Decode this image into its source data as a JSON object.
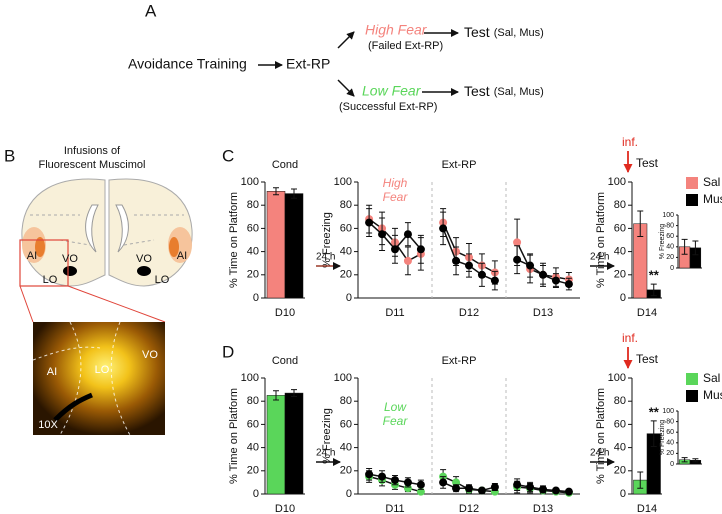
{
  "panel_labels": [
    "A",
    "B",
    "C",
    "D"
  ],
  "diagram": {
    "training": "Avoidance Training",
    "ext_rp": "Ext-RP",
    "high": "High Fear",
    "high_sub": "(Failed Ext-RP)",
    "low": "Low Fear",
    "low_sub": "(Successful Ext-RP)",
    "tests": [
      {
        "test": "Test",
        "groups": "(Sal, Mus)"
      },
      {
        "test": "Test",
        "groups": "(Sal, Mus)"
      }
    ]
  },
  "brain": {
    "title": [
      "Infusions of",
      "Fluorescent Muscimol"
    ],
    "labels": [
      "AI",
      "VO",
      "LO",
      "VO",
      "AI",
      "LO"
    ],
    "photo_labels": [
      "AI",
      "LO",
      "VO",
      "10X"
    ]
  },
  "rows": [
    {
      "intervals": [
        "24 h",
        "24 h"
      ],
      "infusion": "inf.",
      "test": "Test"
    },
    {
      "intervals": [
        "24 h",
        "24 h"
      ],
      "infusion": "inf.",
      "test": "Test"
    }
  ],
  "chart_data": [
    {
      "type": "bar",
      "title": "Cond",
      "ylabel": "% Time on Platform",
      "categories": [
        "D10"
      ],
      "series": [
        {
          "color": "#f4837d",
          "values": [
            92
          ],
          "errors": [
            3
          ]
        },
        {
          "color": "#000000",
          "values": [
            90
          ],
          "errors": [
            4
          ]
        }
      ],
      "ylim": [
        0,
        100
      ],
      "yticks": [
        0,
        20,
        40,
        60,
        80,
        100
      ]
    },
    {
      "type": "line",
      "title": "Ext-RP",
      "ylabel": "% Freezing",
      "annotation": [
        "High",
        "Fear"
      ],
      "annotation_color": "#f4837d",
      "categories": [
        "D11",
        "D12",
        "D13"
      ],
      "series": [
        {
          "color": "#f4837d",
          "values": [
            [
              68,
              60,
              48,
              32,
              38
            ],
            [
              65,
              40,
              35,
              28,
              22
            ],
            [
              48,
              25,
              20,
              18,
              16
            ]
          ],
          "errors": [
            [
              12,
              14,
              12,
              12,
              14
            ],
            [
              12,
              12,
              12,
              10,
              10
            ],
            [
              20,
              12,
              10,
              8,
              6
            ]
          ]
        },
        {
          "color": "#000000",
          "values": [
            [
              65,
              55,
              42,
              55,
              42
            ],
            [
              60,
              32,
              28,
              20,
              15
            ],
            [
              33,
              28,
              20,
              15,
              12
            ]
          ],
          "errors": [
            [
              12,
              14,
              12,
              10,
              12
            ],
            [
              14,
              12,
              10,
              10,
              8
            ],
            [
              12,
              10,
              8,
              6,
              5
            ]
          ]
        }
      ],
      "ylim": [
        0,
        100
      ],
      "yticks": [
        0,
        20,
        40,
        60,
        80,
        100
      ]
    },
    {
      "type": "bar",
      "ylabel": "% Time on Platform",
      "categories": [
        "D14"
      ],
      "annotation": "**",
      "series": [
        {
          "name": "Sal",
          "color": "#f4837d",
          "values": [
            64
          ],
          "errors": [
            11
          ]
        },
        {
          "name": "Mus",
          "color": "#000000",
          "values": [
            7
          ],
          "errors": [
            5
          ]
        }
      ],
      "ylim": [
        0,
        100
      ],
      "yticks": [
        0,
        20,
        40,
        60,
        80,
        100
      ]
    },
    {
      "type": "bar",
      "ylabel": "% Freezing",
      "series": [
        {
          "color": "#f4837d",
          "values": [
            40
          ],
          "errors": [
            14
          ]
        },
        {
          "color": "#000000",
          "values": [
            38
          ],
          "errors": [
            13
          ]
        }
      ],
      "ylim": [
        0,
        100
      ],
      "yticks": [
        0,
        20,
        40,
        60,
        80,
        100
      ]
    },
    {
      "type": "bar",
      "title": "Cond",
      "ylabel": "% Time on Platform",
      "categories": [
        "D10"
      ],
      "series": [
        {
          "color": "#5ad65a",
          "values": [
            85
          ],
          "errors": [
            4
          ]
        },
        {
          "color": "#000000",
          "values": [
            87
          ],
          "errors": [
            3
          ]
        }
      ],
      "ylim": [
        0,
        100
      ],
      "yticks": [
        0,
        20,
        40,
        60,
        80,
        100
      ]
    },
    {
      "type": "line",
      "title": "Ext-RP",
      "ylabel": "% Freezing",
      "annotation": [
        "Low",
        "Fear"
      ],
      "annotation_color": "#5ad65a",
      "categories": [
        "D11",
        "D12",
        "D13"
      ],
      "series": [
        {
          "color": "#5ad65a",
          "values": [
            [
              15,
              12,
              8,
              5,
              2
            ],
            [
              15,
              10,
              4,
              3,
              2
            ],
            [
              6,
              5,
              3,
              2,
              1
            ]
          ],
          "errors": [
            [
              5,
              5,
              4,
              3,
              2
            ],
            [
              6,
              5,
              3,
              2,
              2
            ],
            [
              5,
              4,
              3,
              2,
              1
            ]
          ]
        },
        {
          "color": "#000000",
          "values": [
            [
              17,
              15,
              12,
              10,
              8
            ],
            [
              10,
              5,
              5,
              3,
              6
            ],
            [
              8,
              6,
              4,
              3,
              2
            ]
          ],
          "errors": [
            [
              5,
              5,
              4,
              4,
              4
            ],
            [
              5,
              3,
              3,
              2,
              3
            ],
            [
              5,
              4,
              3,
              2,
              2
            ]
          ]
        }
      ],
      "ylim": [
        0,
        100
      ],
      "yticks": [
        0,
        20,
        40,
        60,
        80,
        100
      ]
    },
    {
      "type": "bar",
      "ylabel": "% Time on Platform",
      "categories": [
        "D14"
      ],
      "annotation": "**",
      "series": [
        {
          "name": "Sal",
          "color": "#5ad65a",
          "values": [
            12
          ],
          "errors": [
            7
          ]
        },
        {
          "name": "Mus",
          "color": "#000000",
          "values": [
            52
          ],
          "errors": [
            11
          ]
        }
      ],
      "ylim": [
        0,
        100
      ],
      "yticks": [
        0,
        20,
        40,
        60,
        80,
        100
      ]
    },
    {
      "type": "bar",
      "ylabel": "% Freezing",
      "series": [
        {
          "color": "#5ad65a",
          "values": [
            8
          ],
          "errors": [
            4
          ]
        },
        {
          "color": "#000000",
          "values": [
            7
          ],
          "errors": [
            3
          ]
        }
      ],
      "ylim": [
        0,
        100
      ],
      "yticks": [
        0,
        20,
        40,
        60,
        80,
        100
      ]
    }
  ]
}
